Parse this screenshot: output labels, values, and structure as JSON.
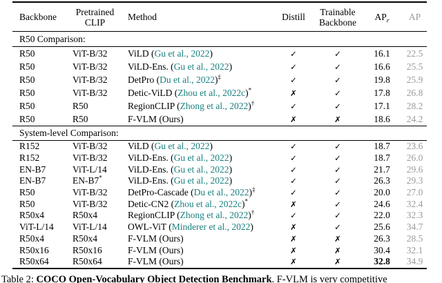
{
  "colors": {
    "citation_teal": "#187f7e",
    "muted_gray": "#9b9b9b",
    "text": "#000000"
  },
  "glyphs": {
    "check": "✓",
    "cross": "✗"
  },
  "table": {
    "headers": {
      "backbone": "Backbone",
      "pretrained_clip_line1": "Pretrained",
      "pretrained_clip_line2": "CLIP",
      "method": "Method",
      "distill": "Distill",
      "trainable_line1": "Trainable",
      "trainable_line2": "Backbone",
      "ap_r_base": "AP",
      "ap_r_sub": "r",
      "ap": "AP"
    },
    "sections": [
      {
        "title": "R50 Comparison:",
        "rows": [
          {
            "backbone": "R50",
            "clip": "ViT-B/32",
            "clip_sup": "",
            "method": "ViLD (",
            "cite": "Gu et al., 2022",
            "close": ")",
            "sup": "",
            "distill": "check",
            "trainable": "check",
            "ap_r": "16.1",
            "ap": "22.5",
            "ap_r_bold": false
          },
          {
            "backbone": "R50",
            "clip": "ViT-B/32",
            "clip_sup": "",
            "method": "ViLD-Ens. (",
            "cite": "Gu et al., 2022",
            "close": ")",
            "sup": "",
            "distill": "check",
            "trainable": "check",
            "ap_r": "16.6",
            "ap": "25.5",
            "ap_r_bold": false
          },
          {
            "backbone": "R50",
            "clip": "ViT-B/32",
            "clip_sup": "",
            "method": "DetPro (",
            "cite": "Du et al., 2022",
            "close": ")",
            "sup": "‡",
            "distill": "check",
            "trainable": "check",
            "ap_r": "19.8",
            "ap": "25.9",
            "ap_r_bold": false
          },
          {
            "backbone": "R50",
            "clip": "ViT-B/32",
            "clip_sup": "",
            "method": "Detic-ViLD (",
            "cite": "Zhou et al., 2022c",
            "close": ")",
            "sup": "*",
            "distill": "cross",
            "trainable": "check",
            "ap_r": "17.8",
            "ap": "26.8",
            "ap_r_bold": false
          },
          {
            "backbone": "R50",
            "clip": "R50",
            "clip_sup": "",
            "method": "RegionCLIP (",
            "cite": "Zhong et al., 2022",
            "close": ")",
            "sup": "†",
            "distill": "check",
            "trainable": "check",
            "ap_r": "17.1",
            "ap": "28.2",
            "ap_r_bold": false
          },
          {
            "backbone": "R50",
            "clip": "R50",
            "clip_sup": "",
            "method": "F-VLM (Ours)",
            "cite": "",
            "close": "",
            "sup": "",
            "distill": "cross",
            "trainable": "cross",
            "ap_r": "18.6",
            "ap": "24.2",
            "ap_r_bold": false
          }
        ]
      },
      {
        "title": "System-level Comparison:",
        "rows": [
          {
            "backbone": "R152",
            "clip": "ViT-B/32",
            "clip_sup": "",
            "method": "ViLD (",
            "cite": "Gu et al., 2022",
            "close": ")",
            "sup": "",
            "distill": "check",
            "trainable": "check",
            "ap_r": "18.7",
            "ap": "23.6",
            "ap_r_bold": false
          },
          {
            "backbone": "R152",
            "clip": "ViT-B/32",
            "clip_sup": "",
            "method": "ViLD-Ens. (",
            "cite": "Gu et al., 2022",
            "close": ")",
            "sup": "",
            "distill": "check",
            "trainable": "check",
            "ap_r": "18.7",
            "ap": "26.0",
            "ap_r_bold": false
          },
          {
            "backbone": "EN-B7",
            "clip": "ViT-L/14",
            "clip_sup": "",
            "method": "ViLD-Ens. (",
            "cite": "Gu et al., 2022",
            "close": ")",
            "sup": "",
            "distill": "check",
            "trainable": "check",
            "ap_r": "21.7",
            "ap": "29.6",
            "ap_r_bold": false
          },
          {
            "backbone": "EN-B7",
            "clip": "EN-B7",
            "clip_sup": "*",
            "method": "ViLD-Ens. (",
            "cite": "Gu et al., 2022",
            "close": ")",
            "sup": "",
            "distill": "check",
            "trainable": "check",
            "ap_r": "26.3",
            "ap": "29.3",
            "ap_r_bold": false
          },
          {
            "backbone": "R50",
            "clip": "ViT-B/32",
            "clip_sup": "",
            "method": "DetPro-Cascade (",
            "cite": "Du et al., 2022",
            "close": ")",
            "sup": "‡",
            "distill": "check",
            "trainable": "check",
            "ap_r": "20.0",
            "ap": "27.0",
            "ap_r_bold": false
          },
          {
            "backbone": "R50",
            "clip": "ViT-B/32",
            "clip_sup": "",
            "method": "Detic-CN2 (",
            "cite": "Zhou et al., 2022c",
            "close": ")",
            "sup": "*",
            "distill": "cross",
            "trainable": "check",
            "ap_r": "24.6",
            "ap": "32.4",
            "ap_r_bold": false
          },
          {
            "backbone": "R50x4",
            "clip": "R50x4",
            "clip_sup": "",
            "method": "RegionCLIP (",
            "cite": "Zhong et al., 2022",
            "close": ")",
            "sup": "†",
            "distill": "check",
            "trainable": "check",
            "ap_r": "22.0",
            "ap": "32.3",
            "ap_r_bold": false
          },
          {
            "backbone": "ViT-L/14",
            "clip": "ViT-L/14",
            "clip_sup": "",
            "method": "OWL-ViT (",
            "cite": "Minderer et al., 2022",
            "close": ")",
            "sup": "",
            "distill": "cross",
            "trainable": "check",
            "ap_r": "25.6",
            "ap": "34.7",
            "ap_r_bold": false
          },
          {
            "backbone": "R50x4",
            "clip": "R50x4",
            "clip_sup": "",
            "method": "F-VLM (Ours)",
            "cite": "",
            "close": "",
            "sup": "",
            "distill": "cross",
            "trainable": "cross",
            "ap_r": "26.3",
            "ap": "28.5",
            "ap_r_bold": false
          },
          {
            "backbone": "R50x16",
            "clip": "R50x16",
            "clip_sup": "",
            "method": "F-VLM (Ours)",
            "cite": "",
            "close": "",
            "sup": "",
            "distill": "cross",
            "trainable": "cross",
            "ap_r": "30.4",
            "ap": "32.1",
            "ap_r_bold": false
          },
          {
            "backbone": "R50x64",
            "clip": "R50x64",
            "clip_sup": "",
            "method": "F-VLM (Ours)",
            "cite": "",
            "close": "",
            "sup": "",
            "distill": "cross",
            "trainable": "cross",
            "ap_r": "32.8",
            "ap": "34.9",
            "ap_r_bold": true
          }
        ]
      }
    ]
  },
  "caption": {
    "prefix": "Table 2: ",
    "bold": "COCO Open-Vocabulary Object Detection Benchmark",
    "rest": ". F-VLM is very competitive"
  }
}
